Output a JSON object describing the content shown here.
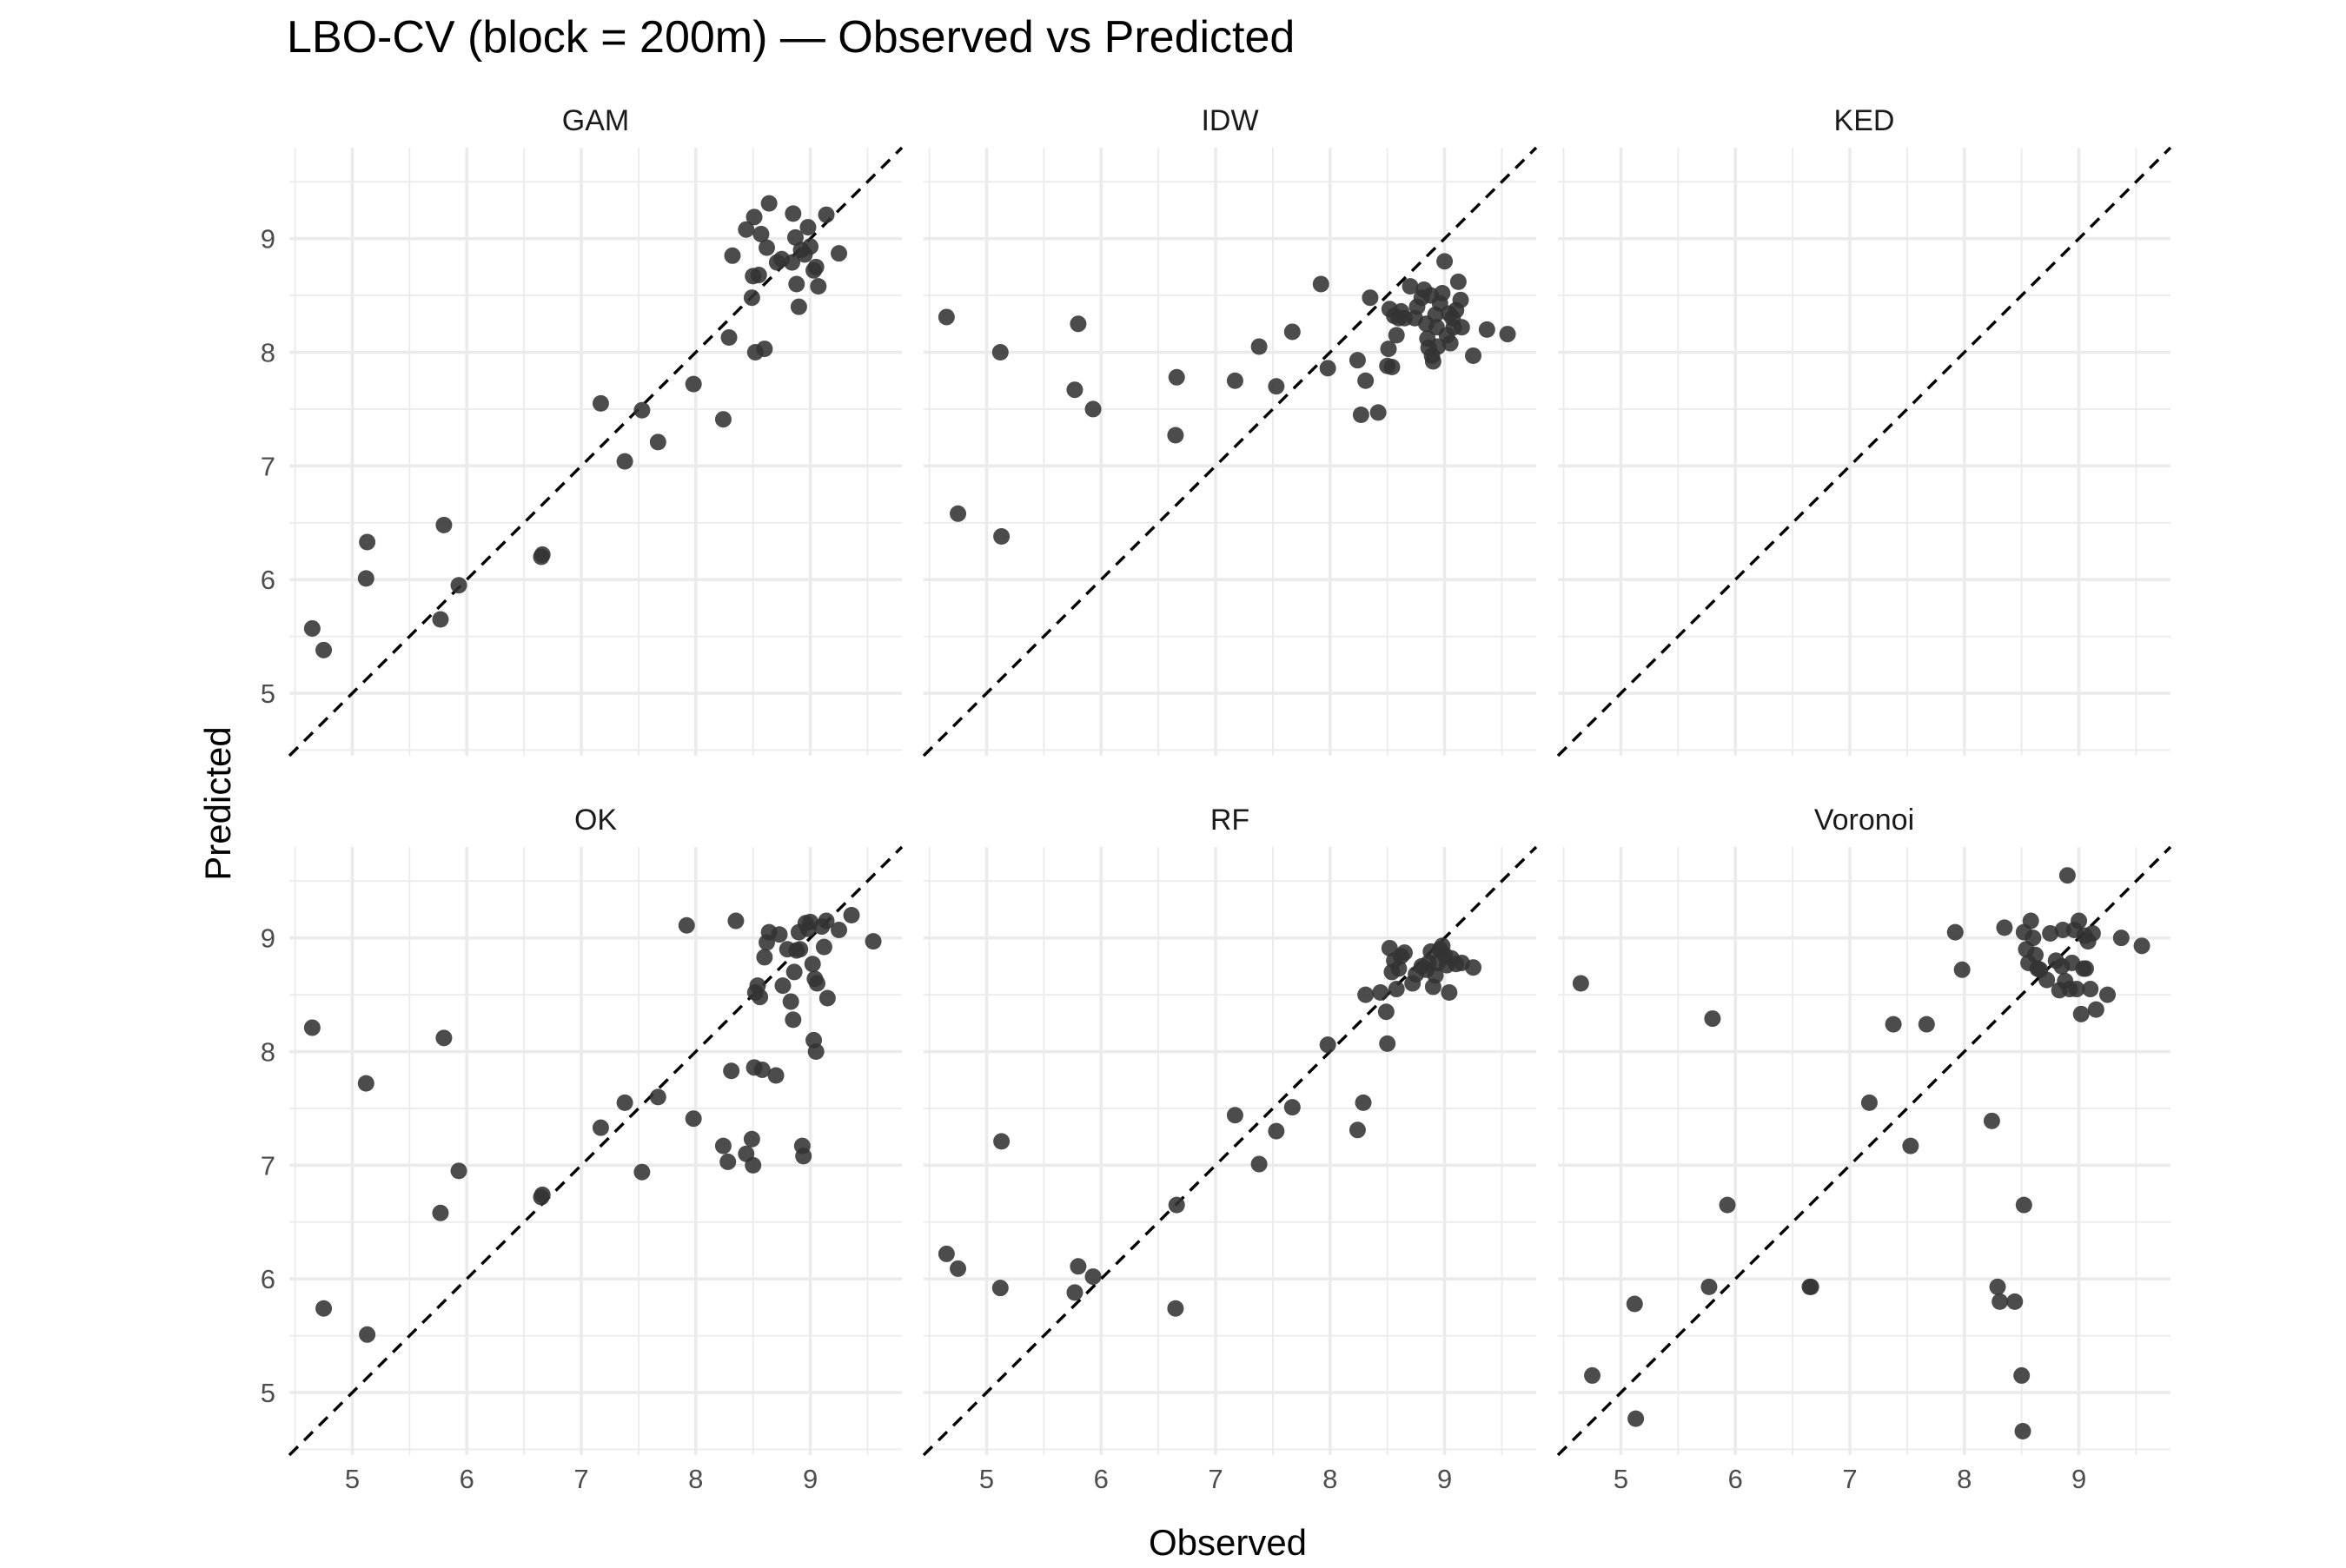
{
  "chart_data": {
    "type": "scatter",
    "title": "LBO-CV (block = 200m) — Observed vs Predicted",
    "xlabel": "Observed",
    "ylabel": "Predicted",
    "xlim": [
      4.45,
      9.8
    ],
    "ylim": [
      4.45,
      9.8
    ],
    "x_ticks": [
      "5",
      "6",
      "7",
      "8",
      "9"
    ],
    "y_ticks": [
      "5",
      "6",
      "7",
      "8",
      "9"
    ],
    "grid": true,
    "reference_line": "y = x (dashed)",
    "point_color": "#333333",
    "line_color": "#000000",
    "grid_color": "#ebebeb",
    "panels": [
      {
        "name": "GAM",
        "points": [
          [
            4.65,
            5.57
          ],
          [
            4.75,
            5.38
          ],
          [
            5.12,
            6.01
          ],
          [
            5.13,
            6.33
          ],
          [
            5.77,
            5.65
          ],
          [
            5.8,
            6.48
          ],
          [
            5.93,
            5.95
          ],
          [
            6.65,
            6.2
          ],
          [
            6.66,
            6.22
          ],
          [
            7.17,
            7.55
          ],
          [
            7.38,
            7.04
          ],
          [
            7.53,
            7.49
          ],
          [
            7.67,
            7.21
          ],
          [
            7.98,
            7.72
          ],
          [
            8.24,
            7.41
          ],
          [
            8.29,
            8.13
          ],
          [
            8.32,
            8.85
          ],
          [
            8.44,
            9.08
          ],
          [
            8.49,
            8.48
          ],
          [
            8.5,
            8.67
          ],
          [
            8.51,
            9.19
          ],
          [
            8.52,
            8.0
          ],
          [
            8.55,
            8.68
          ],
          [
            8.57,
            9.04
          ],
          [
            8.6,
            8.03
          ],
          [
            8.62,
            8.92
          ],
          [
            8.64,
            9.31
          ],
          [
            8.71,
            8.79
          ],
          [
            8.75,
            8.82
          ],
          [
            8.84,
            8.79
          ],
          [
            8.85,
            9.22
          ],
          [
            8.87,
            9.01
          ],
          [
            8.88,
            8.6
          ],
          [
            8.9,
            8.4
          ],
          [
            8.92,
            8.9
          ],
          [
            8.95,
            8.86
          ],
          [
            8.98,
            9.1
          ],
          [
            9.0,
            8.93
          ],
          [
            9.03,
            8.72
          ],
          [
            9.05,
            8.75
          ],
          [
            9.07,
            8.58
          ],
          [
            9.14,
            9.21
          ],
          [
            9.25,
            8.87
          ]
        ]
      },
      {
        "name": "IDW",
        "points": [
          [
            4.65,
            8.31
          ],
          [
            4.75,
            6.58
          ],
          [
            5.12,
            8.0
          ],
          [
            5.13,
            6.38
          ],
          [
            5.77,
            7.67
          ],
          [
            5.8,
            8.25
          ],
          [
            5.93,
            7.5
          ],
          [
            6.65,
            7.27
          ],
          [
            6.66,
            7.78
          ],
          [
            7.17,
            7.75
          ],
          [
            7.38,
            8.05
          ],
          [
            7.53,
            7.7
          ],
          [
            7.67,
            8.18
          ],
          [
            7.92,
            8.6
          ],
          [
            7.98,
            7.86
          ],
          [
            8.24,
            7.93
          ],
          [
            8.27,
            7.45
          ],
          [
            8.31,
            7.75
          ],
          [
            8.35,
            8.48
          ],
          [
            8.42,
            7.47
          ],
          [
            8.5,
            7.88
          ],
          [
            8.51,
            8.03
          ],
          [
            8.52,
            8.38
          ],
          [
            8.54,
            7.87
          ],
          [
            8.56,
            8.32
          ],
          [
            8.58,
            8.15
          ],
          [
            8.6,
            8.3
          ],
          [
            8.62,
            8.36
          ],
          [
            8.65,
            8.3
          ],
          [
            8.7,
            8.58
          ],
          [
            8.74,
            8.3
          ],
          [
            8.76,
            8.4
          ],
          [
            8.8,
            8.48
          ],
          [
            8.82,
            8.55
          ],
          [
            8.84,
            8.25
          ],
          [
            8.85,
            8.12
          ],
          [
            8.86,
            8.04
          ],
          [
            8.88,
            8.5
          ],
          [
            8.89,
            7.97
          ],
          [
            8.9,
            7.92
          ],
          [
            8.92,
            8.33
          ],
          [
            8.93,
            8.22
          ],
          [
            8.94,
            8.05
          ],
          [
            8.96,
            8.43
          ],
          [
            8.98,
            8.52
          ],
          [
            9.0,
            8.8
          ],
          [
            9.02,
            8.15
          ],
          [
            9.04,
            8.34
          ],
          [
            9.05,
            8.08
          ],
          [
            9.07,
            8.3
          ],
          [
            9.08,
            8.22
          ],
          [
            9.1,
            8.37
          ],
          [
            9.12,
            8.62
          ],
          [
            9.14,
            8.46
          ],
          [
            9.15,
            8.22
          ],
          [
            9.25,
            7.97
          ],
          [
            9.37,
            8.2
          ],
          [
            9.55,
            8.16
          ]
        ]
      },
      {
        "name": "KED",
        "points": []
      },
      {
        "name": "OK",
        "points": [
          [
            4.65,
            8.21
          ],
          [
            4.75,
            5.74
          ],
          [
            5.12,
            7.72
          ],
          [
            5.13,
            5.51
          ],
          [
            5.77,
            6.58
          ],
          [
            5.8,
            8.12
          ],
          [
            5.93,
            6.95
          ],
          [
            6.65,
            6.72
          ],
          [
            6.66,
            6.74
          ],
          [
            7.17,
            7.33
          ],
          [
            7.38,
            7.55
          ],
          [
            7.53,
            6.94
          ],
          [
            7.67,
            7.6
          ],
          [
            7.92,
            9.11
          ],
          [
            7.98,
            7.41
          ],
          [
            8.24,
            7.17
          ],
          [
            8.28,
            7.03
          ],
          [
            8.31,
            7.83
          ],
          [
            8.35,
            9.15
          ],
          [
            8.44,
            7.1
          ],
          [
            8.49,
            7.23
          ],
          [
            8.5,
            7.0
          ],
          [
            8.51,
            7.86
          ],
          [
            8.52,
            8.52
          ],
          [
            8.54,
            8.58
          ],
          [
            8.56,
            8.48
          ],
          [
            8.58,
            7.84
          ],
          [
            8.6,
            8.83
          ],
          [
            8.62,
            8.96
          ],
          [
            8.64,
            9.05
          ],
          [
            8.7,
            7.79
          ],
          [
            8.73,
            9.03
          ],
          [
            8.76,
            8.58
          ],
          [
            8.8,
            8.9
          ],
          [
            8.83,
            8.44
          ],
          [
            8.85,
            8.28
          ],
          [
            8.86,
            8.7
          ],
          [
            8.88,
            8.89
          ],
          [
            8.9,
            9.05
          ],
          [
            8.91,
            8.9
          ],
          [
            8.93,
            7.17
          ],
          [
            8.94,
            7.08
          ],
          [
            8.96,
            9.13
          ],
          [
            8.98,
            9.08
          ],
          [
            9.0,
            9.14
          ],
          [
            9.02,
            8.77
          ],
          [
            9.03,
            8.1
          ],
          [
            9.04,
            8.64
          ],
          [
            9.05,
            8.0
          ],
          [
            9.06,
            8.6
          ],
          [
            9.1,
            9.1
          ],
          [
            9.12,
            8.92
          ],
          [
            9.14,
            9.15
          ],
          [
            9.15,
            8.47
          ],
          [
            9.25,
            9.07
          ],
          [
            9.36,
            9.2
          ],
          [
            9.55,
            8.97
          ]
        ]
      },
      {
        "name": "RF",
        "points": [
          [
            4.65,
            6.22
          ],
          [
            4.75,
            6.09
          ],
          [
            5.12,
            5.92
          ],
          [
            5.13,
            7.21
          ],
          [
            5.77,
            5.88
          ],
          [
            5.8,
            6.11
          ],
          [
            5.93,
            6.02
          ],
          [
            6.65,
            5.74
          ],
          [
            6.66,
            6.65
          ],
          [
            7.17,
            7.44
          ],
          [
            7.38,
            7.01
          ],
          [
            7.53,
            7.3
          ],
          [
            7.67,
            7.51
          ],
          [
            7.98,
            8.06
          ],
          [
            8.24,
            7.31
          ],
          [
            8.29,
            7.55
          ],
          [
            8.31,
            8.5
          ],
          [
            8.44,
            8.52
          ],
          [
            8.49,
            8.35
          ],
          [
            8.5,
            8.07
          ],
          [
            8.52,
            8.91
          ],
          [
            8.54,
            8.7
          ],
          [
            8.56,
            8.8
          ],
          [
            8.58,
            8.55
          ],
          [
            8.6,
            8.73
          ],
          [
            8.62,
            8.84
          ],
          [
            8.65,
            8.87
          ],
          [
            8.72,
            8.6
          ],
          [
            8.75,
            8.68
          ],
          [
            8.8,
            8.75
          ],
          [
            8.84,
            8.72
          ],
          [
            8.86,
            8.78
          ],
          [
            8.88,
            8.88
          ],
          [
            8.9,
            8.57
          ],
          [
            8.92,
            8.67
          ],
          [
            8.94,
            8.78
          ],
          [
            8.96,
            8.9
          ],
          [
            8.98,
            8.93
          ],
          [
            9.0,
            8.85
          ],
          [
            9.02,
            8.76
          ],
          [
            9.04,
            8.52
          ],
          [
            9.06,
            8.82
          ],
          [
            9.1,
            8.77
          ],
          [
            9.15,
            8.78
          ],
          [
            9.25,
            8.74
          ]
        ]
      },
      {
        "name": "Voronoi",
        "points": [
          [
            4.65,
            8.6
          ],
          [
            4.75,
            5.15
          ],
          [
            5.12,
            5.78
          ],
          [
            5.13,
            4.77
          ],
          [
            5.77,
            5.93
          ],
          [
            5.8,
            8.29
          ],
          [
            5.93,
            6.65
          ],
          [
            6.65,
            5.93
          ],
          [
            6.66,
            5.93
          ],
          [
            7.17,
            7.55
          ],
          [
            7.38,
            8.24
          ],
          [
            7.53,
            7.17
          ],
          [
            7.67,
            8.24
          ],
          [
            7.92,
            9.05
          ],
          [
            7.98,
            8.72
          ],
          [
            8.24,
            7.39
          ],
          [
            8.29,
            5.93
          ],
          [
            8.31,
            5.8
          ],
          [
            8.35,
            9.09
          ],
          [
            8.44,
            5.8
          ],
          [
            8.5,
            5.15
          ],
          [
            8.51,
            4.66
          ],
          [
            8.52,
            6.65
          ],
          [
            8.52,
            9.05
          ],
          [
            8.54,
            8.9
          ],
          [
            8.56,
            8.78
          ],
          [
            8.58,
            9.15
          ],
          [
            8.6,
            9.0
          ],
          [
            8.62,
            8.85
          ],
          [
            8.64,
            8.73
          ],
          [
            8.66,
            8.72
          ],
          [
            8.72,
            8.63
          ],
          [
            8.75,
            9.04
          ],
          [
            8.8,
            8.8
          ],
          [
            8.83,
            8.54
          ],
          [
            8.85,
            8.75
          ],
          [
            8.86,
            9.07
          ],
          [
            8.88,
            8.62
          ],
          [
            8.9,
            9.55
          ],
          [
            8.92,
            8.55
          ],
          [
            8.94,
            8.78
          ],
          [
            8.96,
            9.07
          ],
          [
            8.98,
            8.55
          ],
          [
            9.0,
            9.15
          ],
          [
            9.02,
            8.33
          ],
          [
            9.04,
            8.73
          ],
          [
            9.05,
            9.02
          ],
          [
            9.06,
            8.73
          ],
          [
            9.08,
            8.97
          ],
          [
            9.1,
            8.55
          ],
          [
            9.12,
            9.04
          ],
          [
            9.15,
            8.37
          ],
          [
            9.25,
            8.5
          ],
          [
            9.37,
            9.0
          ],
          [
            9.55,
            8.93
          ]
        ]
      }
    ]
  }
}
